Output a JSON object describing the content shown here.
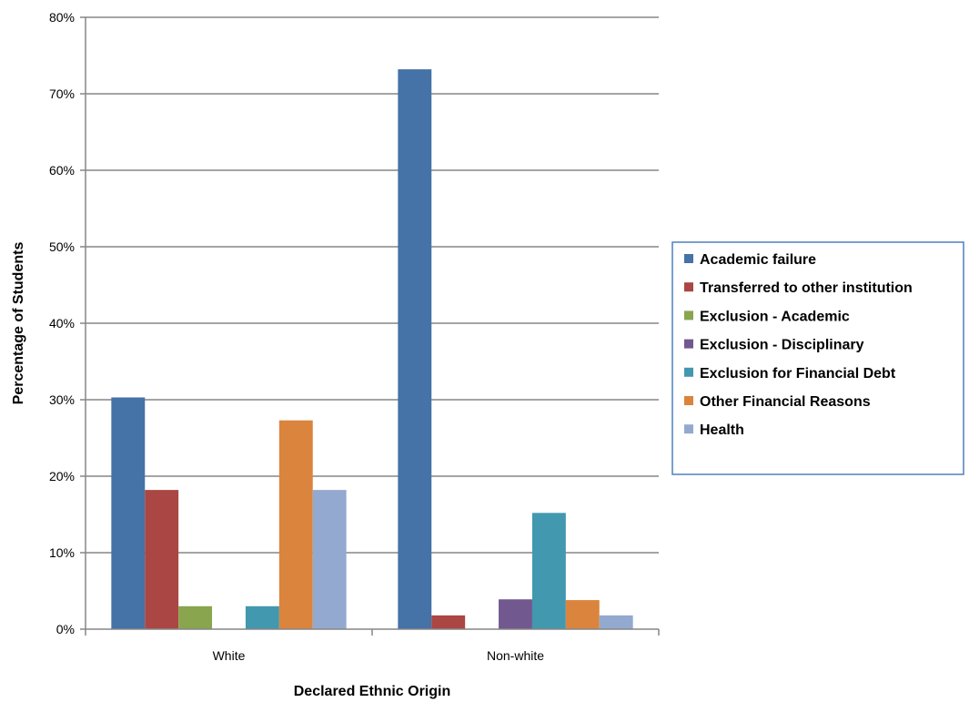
{
  "chart_data": {
    "type": "bar",
    "title": "",
    "xlabel": "Declared Ethnic Origin",
    "ylabel": "Percentage of Students",
    "ylim": [
      0,
      80
    ],
    "yticks": [
      "0%",
      "10%",
      "20%",
      "30%",
      "40%",
      "50%",
      "60%",
      "70%",
      "80%"
    ],
    "categories": [
      "White",
      "Non-white"
    ],
    "grid": true,
    "legend_position": "right",
    "series": [
      {
        "name": "Academic failure",
        "color": "#4572A7",
        "values": [
          30.3,
          73.2
        ]
      },
      {
        "name": "Transferred to other institution",
        "color": "#AA4643",
        "values": [
          18.2,
          1.8
        ]
      },
      {
        "name": "Exclusion - Academic",
        "color": "#89A54E",
        "values": [
          3.0,
          0
        ]
      },
      {
        "name": "Exclusion - Disciplinary",
        "color": "#71588F",
        "values": [
          0,
          3.9
        ]
      },
      {
        "name": "Exclusion for Financial Debt",
        "color": "#4198AF",
        "values": [
          3.0,
          15.2
        ]
      },
      {
        "name": "Other Financial Reasons",
        "color": "#DB843D",
        "values": [
          27.3,
          3.8
        ]
      },
      {
        "name": "Health",
        "color": "#93A9CF",
        "values": [
          18.2,
          1.8
        ]
      }
    ]
  }
}
